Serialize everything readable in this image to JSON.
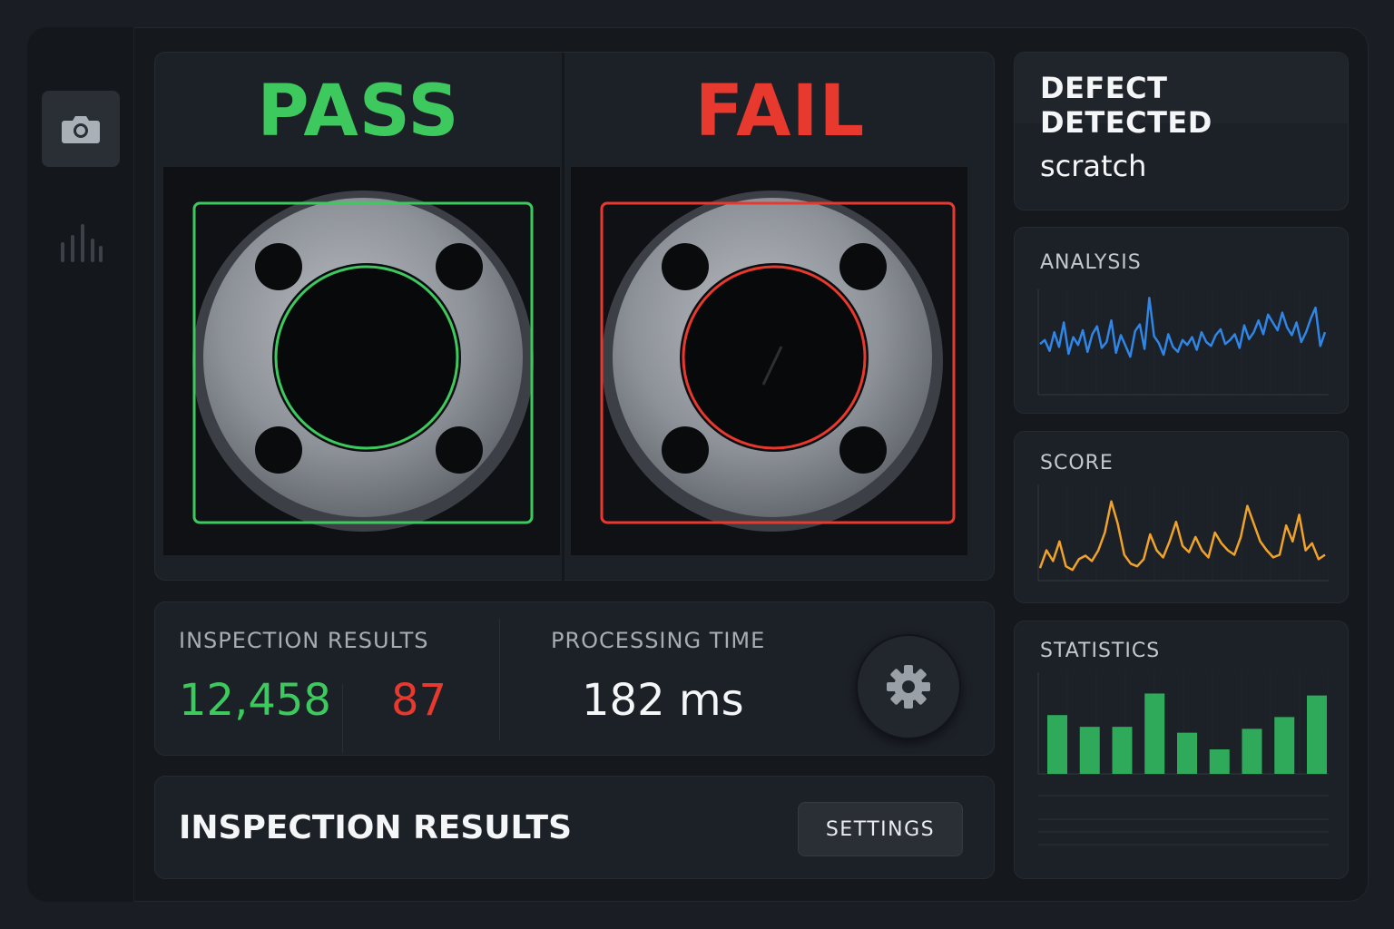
{
  "sidebar": {
    "items": [
      {
        "icon": "camera-icon",
        "active": true
      },
      {
        "icon": "equalizer-icon",
        "active": false
      }
    ]
  },
  "compare": {
    "pass": {
      "label": "PASS",
      "color": "#3ec95e"
    },
    "fail": {
      "label": "FAIL",
      "color": "#e8392f"
    }
  },
  "stats": {
    "inspection_label": "INSPECTION RESULTS",
    "pass_count": "12,458",
    "fail_count": "87",
    "processing_label": "PROCESSING TIME",
    "processing_value": "182 ms",
    "settings_icon": "gear-icon"
  },
  "footer": {
    "title": "INSPECTION RESULTS",
    "settings_label": "SETTINGS"
  },
  "defect": {
    "title": "DEFECT DETECTED",
    "value": "scratch"
  },
  "analysis": {
    "title": "ANALYSIS",
    "color": "#2f86e6",
    "values": [
      48,
      52,
      41,
      60,
      45,
      70,
      38,
      55,
      47,
      62,
      40,
      58,
      66,
      44,
      50,
      72,
      39,
      57,
      46,
      35,
      61,
      68,
      43,
      95,
      56,
      49,
      37,
      58,
      45,
      40,
      52,
      47,
      55,
      42,
      60,
      50,
      46,
      57,
      63,
      48,
      52,
      58,
      44,
      67,
      53,
      60,
      72,
      58,
      78,
      70,
      62,
      80,
      65,
      57,
      70,
      50,
      60,
      74,
      85,
      46,
      60
    ]
  },
  "score": {
    "title": "SCORE",
    "color": "#f0a32a",
    "values": [
      10,
      30,
      18,
      40,
      12,
      8,
      20,
      24,
      18,
      30,
      50,
      85,
      60,
      25,
      15,
      12,
      20,
      48,
      30,
      22,
      40,
      62,
      35,
      28,
      45,
      30,
      22,
      50,
      38,
      30,
      25,
      45,
      80,
      60,
      40,
      30,
      22,
      25,
      58,
      40,
      70,
      30,
      38,
      20,
      25
    ]
  },
  "statistics": {
    "title": "STATISTICS",
    "color": "#2fa95a",
    "values": [
      60,
      48,
      48,
      82,
      42,
      25,
      46,
      58,
      80
    ]
  }
}
